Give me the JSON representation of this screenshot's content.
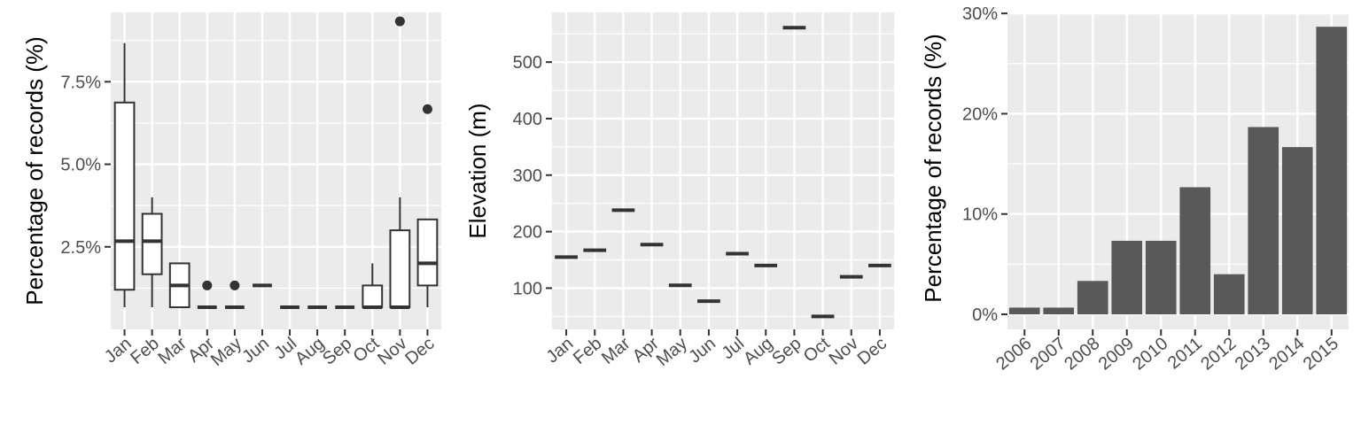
{
  "colors": {
    "panel_background": "#ebebeb",
    "grid": "#ffffff",
    "ink": "#333333",
    "bar_fill": "#595959",
    "tick_text": "#4d4d4d"
  },
  "chart_data": [
    {
      "type": "boxplot",
      "ylabel": "Percentage of records (%)",
      "xlabel": "",
      "categories": [
        "Jan",
        "Feb",
        "Mar",
        "Apr",
        "May",
        "Jun",
        "Jul",
        "Aug",
        "Sep",
        "Oct",
        "Nov",
        "Dec"
      ],
      "y_ticks": [
        2.5,
        5.0,
        7.5
      ],
      "y_tick_labels": [
        "2.5%",
        "5.0%",
        "7.5%"
      ],
      "ylim": [
        0,
        9.6
      ],
      "grid": true,
      "boxes": [
        {
          "category": "Jan",
          "min": 0.67,
          "q1": 1.2,
          "median": 2.67,
          "q3": 6.87,
          "max": 8.67,
          "outliers": []
        },
        {
          "category": "Feb",
          "min": 0.67,
          "q1": 1.67,
          "median": 2.67,
          "q3": 3.5,
          "max": 4.0,
          "outliers": []
        },
        {
          "category": "Mar",
          "min": 0.67,
          "q1": 0.67,
          "median": 1.33,
          "q3": 2.0,
          "max": 2.0,
          "outliers": []
        },
        {
          "category": "Apr",
          "min": 0.67,
          "q1": 0.67,
          "median": 0.67,
          "q3": 0.67,
          "max": 0.67,
          "outliers": [
            1.33
          ]
        },
        {
          "category": "May",
          "min": 0.67,
          "q1": 0.67,
          "median": 0.67,
          "q3": 0.67,
          "max": 0.67,
          "outliers": [
            1.33
          ]
        },
        {
          "category": "Jun",
          "min": 1.33,
          "q1": 1.33,
          "median": 1.33,
          "q3": 1.33,
          "max": 1.33,
          "outliers": []
        },
        {
          "category": "Jul",
          "min": 0.67,
          "q1": 0.67,
          "median": 0.67,
          "q3": 0.67,
          "max": 0.67,
          "outliers": []
        },
        {
          "category": "Aug",
          "min": 0.67,
          "q1": 0.67,
          "median": 0.67,
          "q3": 0.67,
          "max": 0.67,
          "outliers": []
        },
        {
          "category": "Sep",
          "min": 0.67,
          "q1": 0.67,
          "median": 0.67,
          "q3": 0.67,
          "max": 0.67,
          "outliers": []
        },
        {
          "category": "Oct",
          "min": 0.67,
          "q1": 0.67,
          "median": 0.67,
          "q3": 1.33,
          "max": 2.0,
          "outliers": []
        },
        {
          "category": "Nov",
          "min": 0.67,
          "q1": 0.67,
          "median": 0.67,
          "q3": 3.0,
          "max": 4.0,
          "outliers": [
            9.33
          ]
        },
        {
          "category": "Dec",
          "min": 0.67,
          "q1": 1.33,
          "median": 2.0,
          "q3": 3.33,
          "max": 3.33,
          "outliers": [
            6.67
          ]
        }
      ]
    },
    {
      "type": "scatter",
      "marker": "horizontal-dash",
      "ylabel": "Elevation (m)",
      "xlabel": "",
      "categories": [
        "Jan",
        "Feb",
        "Mar",
        "Apr",
        "May",
        "Jun",
        "Jul",
        "Aug",
        "Sep",
        "Oct",
        "Nov",
        "Dec"
      ],
      "values": [
        155,
        167,
        238,
        177,
        105,
        77,
        161,
        140,
        561,
        50,
        120,
        140
      ],
      "y_ticks": [
        100,
        200,
        300,
        400,
        500
      ],
      "y_tick_labels": [
        "100",
        "200",
        "300",
        "400",
        "500"
      ],
      "ylim": [
        27,
        588
      ],
      "grid": true
    },
    {
      "type": "bar",
      "ylabel": "Percentage of records (%)",
      "xlabel": "",
      "categories": [
        "2006",
        "2007",
        "2008",
        "2009",
        "2010",
        "2011",
        "2012",
        "2013",
        "2014",
        "2015"
      ],
      "values": [
        0.67,
        0.67,
        3.33,
        7.33,
        7.33,
        12.67,
        4.0,
        18.67,
        16.67,
        28.67
      ],
      "y_ticks": [
        0,
        10,
        20,
        30
      ],
      "y_tick_labels": [
        "0%",
        "10%",
        "20%",
        "30%"
      ],
      "ylim": [
        -1.5,
        30.1
      ],
      "grid": true
    }
  ]
}
